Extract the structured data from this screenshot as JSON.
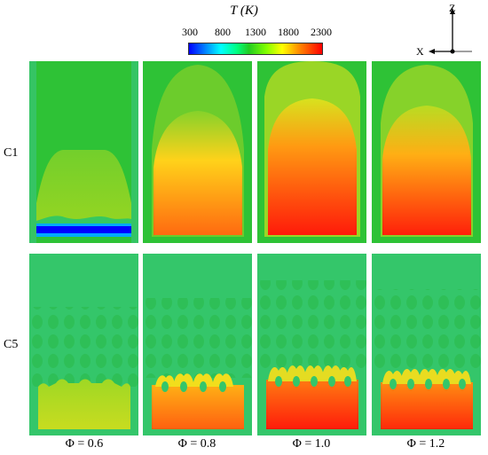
{
  "colorbar": {
    "title_var": "T",
    "title_unit": "(K)",
    "ticks": [
      "300",
      "800",
      "1300",
      "1800",
      "2300"
    ],
    "range": [
      300,
      2300
    ]
  },
  "axes": {
    "z": "Z",
    "x": "X"
  },
  "rows": [
    "C1",
    "C5"
  ],
  "columns": [
    "Φ = 0.6",
    "Φ = 0.8",
    "Φ = 1.0",
    "Φ = 1.2"
  ],
  "colors": {
    "background": "#2ec236",
    "hot": "#ff2a10",
    "warm": "#ffb000",
    "cold": "#0000ff"
  }
}
